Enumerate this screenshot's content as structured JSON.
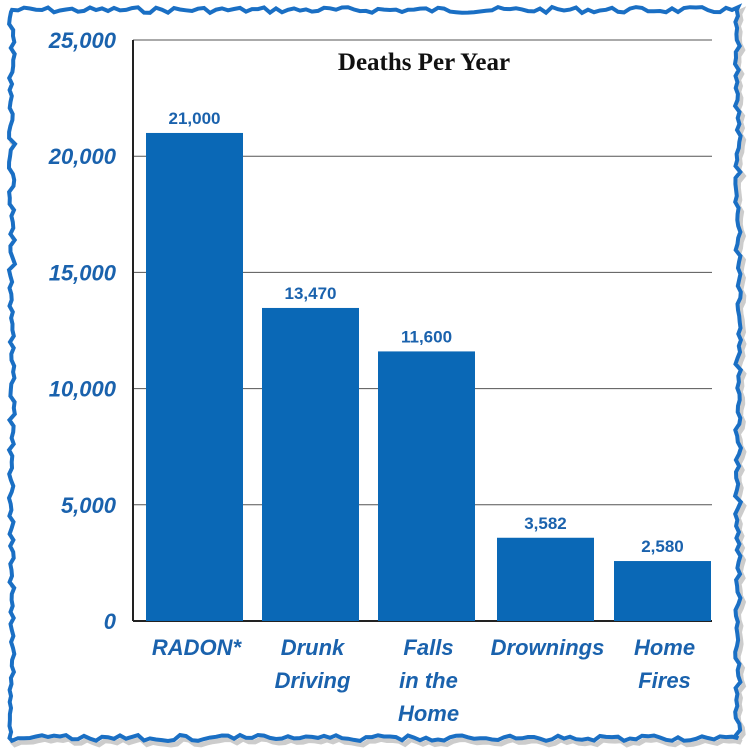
{
  "chart_data": {
    "type": "bar",
    "title": "Deaths Per Year",
    "categories": [
      [
        "RADON*"
      ],
      [
        "Drunk",
        "Driving"
      ],
      [
        "Falls",
        "in the",
        "Home"
      ],
      [
        "Drownings"
      ],
      [
        "Home",
        "Fires"
      ]
    ],
    "values": [
      21000,
      13470,
      11600,
      3582,
      2580
    ],
    "data_labels": [
      "21,000",
      "13,470",
      "11,600",
      "3,582",
      "2,580"
    ],
    "yticks": [
      0,
      5000,
      10000,
      15000,
      20000,
      25000
    ],
    "ytick_labels": [
      "0",
      "5,000",
      "10,000",
      "15,000",
      "20,000",
      "25,000"
    ],
    "ylim": [
      0,
      25000
    ],
    "grid": true,
    "xlabel": "",
    "ylabel": "",
    "colors": {
      "bar": "#0a68b6",
      "text": "#1a62ad",
      "border": "#1a6fc4",
      "grid": "#555555"
    }
  }
}
